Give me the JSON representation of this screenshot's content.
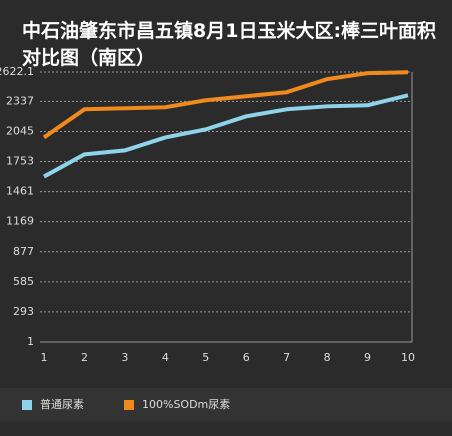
{
  "chart_data": {
    "type": "line",
    "title": "中石油肇东市昌五镇8月1日玉米大区:棒三叶面积对比图（南区）",
    "categories": [
      "1",
      "2",
      "3",
      "4",
      "5",
      "6",
      "7",
      "8",
      "9",
      "10"
    ],
    "series": [
      {
        "name": "普通尿素",
        "color": "#8fd3eb",
        "values": [
          1607,
          1822,
          1861,
          1987,
          2065,
          2192,
          2260,
          2289,
          2299,
          2396
        ]
      },
      {
        "name": "100%SODm尿素",
        "color": "#f08a1c",
        "values": [
          1987,
          2260,
          2270,
          2280,
          2348,
          2387,
          2426,
          2553,
          2611,
          2620
        ]
      }
    ],
    "ylim": [
      1,
      2622.1
    ],
    "yticks": [
      1,
      293,
      585,
      877,
      1169,
      1461,
      1753,
      2045,
      2337,
      2622.1
    ],
    "grid": true,
    "legend": "bottom"
  }
}
